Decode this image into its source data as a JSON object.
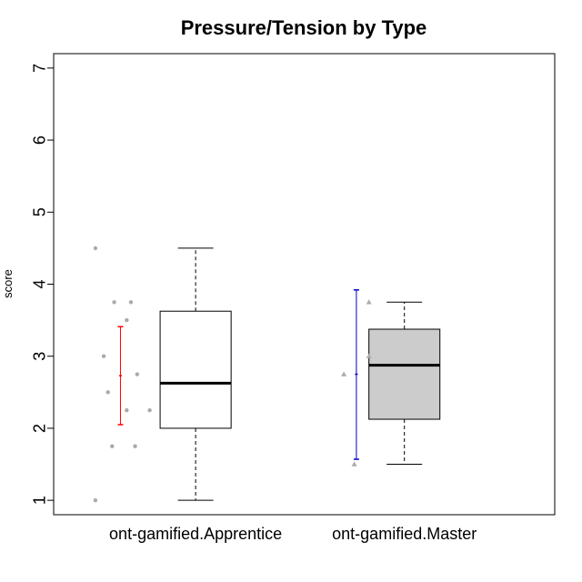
{
  "chart_data": {
    "type": "box",
    "title": "Pressure/Tension by Type",
    "xlabel": "",
    "ylabel": "score",
    "ylim": [
      0.8,
      7.2
    ],
    "yticks": [
      1,
      2,
      3,
      4,
      5,
      6,
      7
    ],
    "categories": [
      "ont-gamified.Apprentice",
      "ont-gamified.Master"
    ],
    "groups": [
      {
        "category": "ont-gamified.Apprentice",
        "box": {
          "min": 1.0,
          "q1": 2.0,
          "median": 2.625,
          "q3": 3.625,
          "max": 4.5,
          "fill": "#ffffff"
        },
        "mean": 2.73,
        "ci_low": 2.05,
        "ci_high": 3.41,
        "ci_color": "#ff0000",
        "point_shape": "circle",
        "points": [
          [
            0.4,
            4.5
          ],
          [
            0.49,
            3.75
          ],
          [
            0.57,
            3.75
          ],
          [
            0.55,
            3.5
          ],
          [
            0.44,
            3.0
          ],
          [
            0.6,
            2.75
          ],
          [
            0.46,
            2.5
          ],
          [
            0.55,
            2.25
          ],
          [
            0.66,
            2.25
          ],
          [
            0.48,
            1.75
          ],
          [
            0.59,
            1.75
          ],
          [
            0.4,
            1.0
          ]
        ]
      },
      {
        "category": "ont-gamified.Master",
        "box": {
          "min": 1.5,
          "q1": 2.125,
          "median": 2.875,
          "q3": 3.375,
          "max": 3.75,
          "fill": "#cccccc"
        },
        "mean": 2.75,
        "ci_low": 1.57,
        "ci_high": 3.92,
        "ci_color": "#0000cc",
        "point_shape": "triangle",
        "points": [
          [
            1.59,
            2.75
          ],
          [
            1.71,
            3.75
          ],
          [
            1.71,
            3.0
          ],
          [
            1.64,
            1.5
          ]
        ]
      }
    ],
    "point_color": "#aaaaaa"
  }
}
